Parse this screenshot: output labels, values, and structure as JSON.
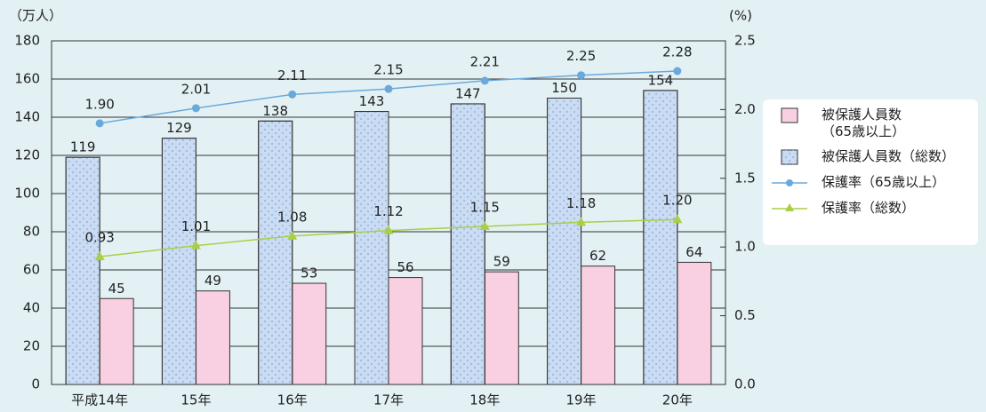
{
  "chart_data": {
    "type": "bar",
    "y_label": "（万人）",
    "y2_label": "(%)",
    "categories": [
      "平成14年",
      "15年",
      "16年",
      "17年",
      "18年",
      "19年",
      "20年"
    ],
    "series": [
      {
        "name": "被保護人員数\n（65歳以上）",
        "type": "bar",
        "color": "#f9d0e1",
        "values": [
          45,
          49,
          53,
          56,
          59,
          62,
          64
        ]
      },
      {
        "name": "被保護人員数（総数）",
        "type": "bar",
        "color": "#c9dcf3",
        "values": [
          119,
          129,
          138,
          143,
          147,
          150,
          154
        ]
      },
      {
        "name": "保護率（65歳以上）",
        "type": "line",
        "axis": "y2",
        "marker": "circle",
        "color": "#6aa9dc",
        "values": [
          1.9,
          2.01,
          2.11,
          2.15,
          2.21,
          2.25,
          2.28
        ],
        "value_labels": [
          "1.90",
          "2.01",
          "2.11",
          "2.15",
          "2.21",
          "2.25",
          "2.28"
        ]
      },
      {
        "name": "保護率（総数）",
        "type": "line",
        "axis": "y2",
        "marker": "triangle",
        "color": "#a8cf45",
        "values": [
          0.93,
          1.01,
          1.08,
          1.12,
          1.15,
          1.18,
          1.2
        ],
        "value_labels": [
          "0.93",
          "1.01",
          "1.08",
          "1.12",
          "1.15",
          "1.18",
          "1.20"
        ]
      }
    ],
    "ylim": [
      0,
      180
    ],
    "yticks": [
      0,
      20,
      40,
      60,
      80,
      100,
      120,
      140,
      160,
      180
    ],
    "y2lim": [
      0,
      2.5
    ],
    "y2ticks": [
      {
        "value": 0,
        "label": "0.0"
      },
      0.5,
      {
        "value": 1,
        "label": "1.0"
      },
      1.5,
      {
        "value": 2,
        "label": "2.0"
      },
      2.5
    ],
    "grid": true,
    "legend": "right"
  }
}
